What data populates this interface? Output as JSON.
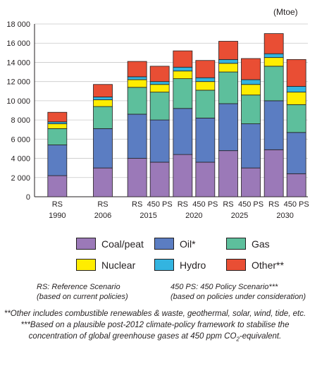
{
  "unit_label": "(Mtoe)",
  "chart_data": {
    "type": "bar",
    "stacked": true,
    "ylim": [
      0,
      18000
    ],
    "yticks": [
      "0",
      "2 000",
      "4 000",
      "6 000",
      "8 000",
      "10 000",
      "12 000",
      "14 000",
      "16 000",
      "18 000"
    ],
    "groups": [
      {
        "year": "1990",
        "bars": [
          "RS"
        ]
      },
      {
        "year": "2006",
        "bars": [
          "RS"
        ]
      },
      {
        "year": "2015",
        "bars": [
          "RS",
          "450 PS"
        ]
      },
      {
        "year": "2020",
        "bars": [
          "RS",
          "450 PS"
        ]
      },
      {
        "year": "2025",
        "bars": [
          "RS",
          "450 PS"
        ]
      },
      {
        "year": "2030",
        "bars": [
          "RS",
          "450 PS"
        ]
      }
    ],
    "series": [
      {
        "name": "Coal/peat",
        "color": "#9b79b8",
        "values": [
          2200,
          3000,
          4000,
          3600,
          4400,
          3600,
          4800,
          3000,
          4900,
          2400
        ]
      },
      {
        "name": "Oil*",
        "color": "#5b7dc2",
        "values": [
          3200,
          4100,
          4600,
          4400,
          4800,
          4600,
          4900,
          4600,
          5100,
          4300
        ]
      },
      {
        "name": "Gas",
        "color": "#5dbf9c",
        "values": [
          1700,
          2300,
          2800,
          2900,
          3100,
          2900,
          3300,
          3000,
          3600,
          2900
        ]
      },
      {
        "name": "Nuclear",
        "color": "#ffed00",
        "values": [
          500,
          700,
          800,
          800,
          800,
          900,
          900,
          1100,
          900,
          1300
        ]
      },
      {
        "name": "Hydro",
        "color": "#33b4e0",
        "values": [
          200,
          300,
          300,
          300,
          400,
          400,
          400,
          500,
          400,
          600
        ]
      },
      {
        "name": "Other**",
        "color": "#e94e34",
        "values": [
          1000,
          1300,
          1600,
          1600,
          1700,
          1800,
          1900,
          2200,
          2100,
          2800
        ]
      }
    ]
  },
  "notes": {
    "rs": [
      "RS: Reference Scenario",
      "(based on current policies)"
    ],
    "ps": [
      "450 PS: 450 Policy Scenario***",
      "(based on policies under consideration)"
    ]
  },
  "footnotes": {
    "line1": "**Other includes combustible renewables & waste, geothermal, solar, wind, tide, etc.",
    "line2": "***Based on a plausible post-2012 climate-policy framework to stabilise the",
    "line3_pre": "concentration of global greenhouse gases at 450 ppm CO",
    "line3_sub": "2",
    "line3_post": "-equivalent."
  }
}
